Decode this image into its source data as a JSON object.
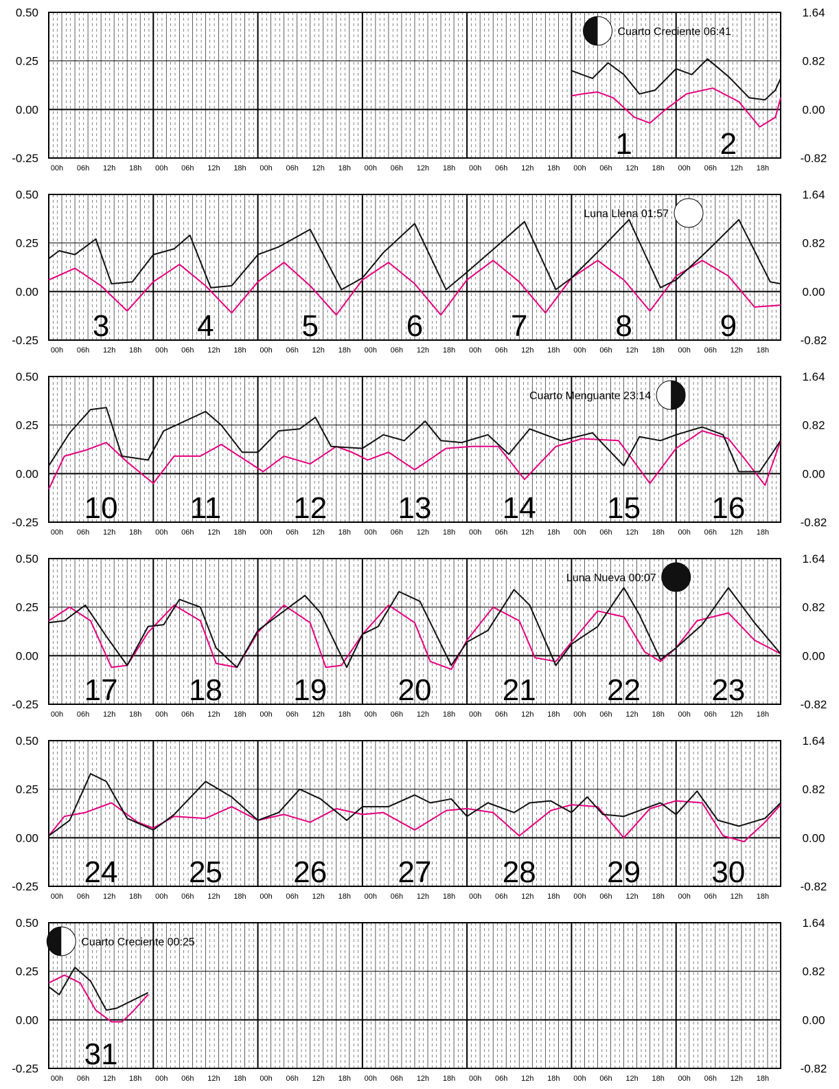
{
  "chart_data": {
    "type": "line",
    "left_axis_ticks": [
      "0.50",
      "0.25",
      "0.00",
      "-0.25"
    ],
    "right_axis_ticks": [
      "1.64",
      "0.82",
      "0.00",
      "-0.82"
    ],
    "ylim": [
      -0.25,
      0.5
    ],
    "time_tick_labels": [
      "00h",
      "06h",
      "12h",
      "18h"
    ],
    "days_per_panel": 7,
    "grid": true,
    "series_colors": {
      "black": "#111111",
      "magenta": "#e6007e"
    },
    "panels": [
      {
        "first_day_of_row": -5,
        "day_labels": [
          {
            "index": 5,
            "text": "1"
          },
          {
            "index": 6,
            "text": "2"
          }
        ],
        "moon": {
          "phase": "first-quarter",
          "label": "Cuarto Creciente 06:41",
          "side": "left",
          "day": 5.25
        },
        "black_t": [
          5,
          5.1,
          5.2,
          5.35,
          5.5,
          5.65,
          5.8,
          6.0,
          6.15,
          6.3,
          6.5,
          6.7,
          6.85,
          6.95,
          7.0
        ],
        "black_v": [
          0.2,
          0.18,
          0.16,
          0.24,
          0.18,
          0.08,
          0.1,
          0.21,
          0.18,
          0.26,
          0.17,
          0.06,
          0.05,
          0.1,
          0.16
        ],
        "magenta_t": [
          5,
          5.1,
          5.25,
          5.4,
          5.6,
          5.75,
          5.9,
          6.1,
          6.35,
          6.6,
          6.8,
          6.95,
          7.0
        ],
        "magenta_v": [
          0.07,
          0.08,
          0.09,
          0.06,
          -0.04,
          -0.07,
          0.0,
          0.08,
          0.11,
          0.04,
          -0.09,
          -0.04,
          0.06
        ]
      },
      {
        "first_day_of_row": 3,
        "day_labels": [
          {
            "index": 0,
            "text": "3"
          },
          {
            "index": 1,
            "text": "4"
          },
          {
            "index": 2,
            "text": "5"
          },
          {
            "index": 3,
            "text": "6"
          },
          {
            "index": 4,
            "text": "7"
          },
          {
            "index": 5,
            "text": "8"
          },
          {
            "index": 6,
            "text": "9"
          }
        ],
        "moon": {
          "phase": "full",
          "label": "Luna Llena 01:57",
          "side": "right",
          "day": 6.12
        },
        "black_t": [
          0,
          0.1,
          0.25,
          0.45,
          0.6,
          0.8,
          1.0,
          1.2,
          1.35,
          1.55,
          1.75,
          2.0,
          2.2,
          2.5,
          2.8,
          3.0,
          3.2,
          3.5,
          3.8,
          4.0,
          4.3,
          4.55,
          4.85,
          5.0,
          5.3,
          5.55,
          5.85,
          6.0,
          6.3,
          6.6,
          6.9,
          7.0
        ],
        "black_v": [
          0.17,
          0.21,
          0.19,
          0.27,
          0.04,
          0.05,
          0.19,
          0.22,
          0.29,
          0.02,
          0.03,
          0.19,
          0.23,
          0.32,
          0.01,
          0.07,
          0.2,
          0.35,
          0.01,
          0.1,
          0.24,
          0.36,
          0.01,
          0.07,
          0.23,
          0.37,
          0.02,
          0.06,
          0.21,
          0.37,
          0.05,
          0.04
        ],
        "magenta_t": [
          0,
          0.25,
          0.5,
          0.75,
          1.0,
          1.25,
          1.5,
          1.75,
          2.0,
          2.25,
          2.5,
          2.75,
          3.0,
          3.25,
          3.5,
          3.75,
          4.0,
          4.25,
          4.5,
          4.75,
          5.0,
          5.25,
          5.5,
          5.75,
          6.0,
          6.25,
          6.5,
          6.75,
          7.0
        ],
        "magenta_v": [
          0.06,
          0.12,
          0.03,
          -0.1,
          0.05,
          0.14,
          0.03,
          -0.11,
          0.05,
          0.15,
          0.03,
          -0.12,
          0.06,
          0.15,
          0.04,
          -0.12,
          0.06,
          0.16,
          0.05,
          -0.11,
          0.07,
          0.16,
          0.06,
          -0.1,
          0.08,
          0.16,
          0.08,
          -0.08,
          -0.07
        ]
      },
      {
        "first_day_of_row": 10,
        "day_labels": [
          {
            "index": 0,
            "text": "10"
          },
          {
            "index": 1,
            "text": "11"
          },
          {
            "index": 2,
            "text": "12"
          },
          {
            "index": 3,
            "text": "13"
          },
          {
            "index": 4,
            "text": "14"
          },
          {
            "index": 5,
            "text": "15"
          },
          {
            "index": 6,
            "text": "16"
          }
        ],
        "moon": {
          "phase": "last-quarter",
          "label": "Cuarto Menguante 23:14",
          "side": "right",
          "day": 5.95
        },
        "black_t": [
          0,
          0.2,
          0.4,
          0.55,
          0.7,
          0.95,
          1.1,
          1.3,
          1.5,
          1.65,
          1.85,
          2.0,
          2.2,
          2.4,
          2.55,
          2.7,
          3.0,
          3.2,
          3.4,
          3.6,
          3.75,
          3.95,
          4.2,
          4.4,
          4.6,
          4.9,
          5.2,
          5.5,
          5.65,
          5.85,
          6.0,
          6.25,
          6.45,
          6.6,
          6.8,
          7.0
        ],
        "black_v": [
          0.04,
          0.21,
          0.33,
          0.34,
          0.09,
          0.07,
          0.22,
          0.27,
          0.32,
          0.25,
          0.11,
          0.11,
          0.22,
          0.23,
          0.29,
          0.14,
          0.13,
          0.2,
          0.17,
          0.27,
          0.17,
          0.16,
          0.2,
          0.1,
          0.23,
          0.17,
          0.21,
          0.04,
          0.19,
          0.17,
          0.2,
          0.24,
          0.2,
          0.01,
          0.01,
          0.17
        ],
        "magenta_t": [
          0,
          0.15,
          0.35,
          0.55,
          0.75,
          1.0,
          1.2,
          1.45,
          1.65,
          1.85,
          2.05,
          2.25,
          2.5,
          2.75,
          2.9,
          3.05,
          3.25,
          3.5,
          3.8,
          4.05,
          4.3,
          4.55,
          4.85,
          5.1,
          5.45,
          5.75,
          6.0,
          6.25,
          6.5,
          6.65,
          6.85,
          7.0
        ],
        "magenta_v": [
          -0.08,
          0.09,
          0.12,
          0.16,
          0.06,
          -0.05,
          0.09,
          0.09,
          0.15,
          0.08,
          0.01,
          0.09,
          0.05,
          0.14,
          0.11,
          0.07,
          0.11,
          0.02,
          0.13,
          0.14,
          0.14,
          -0.03,
          0.14,
          0.18,
          0.17,
          -0.05,
          0.13,
          0.22,
          0.18,
          0.08,
          -0.06,
          0.17
        ]
      },
      {
        "first_day_of_row": 17,
        "day_labels": [
          {
            "index": 0,
            "text": "17"
          },
          {
            "index": 1,
            "text": "18"
          },
          {
            "index": 2,
            "text": "19"
          },
          {
            "index": 3,
            "text": "20"
          },
          {
            "index": 4,
            "text": "21"
          },
          {
            "index": 5,
            "text": "22"
          },
          {
            "index": 6,
            "text": "23"
          }
        ],
        "moon": {
          "phase": "new",
          "label": "Luna Nueva 00:07",
          "side": "right",
          "day": 6.0
        },
        "black_t": [
          0,
          0.15,
          0.35,
          0.55,
          0.75,
          0.95,
          1.1,
          1.25,
          1.45,
          1.6,
          1.8,
          2.0,
          2.15,
          2.45,
          2.6,
          2.85,
          3.0,
          3.15,
          3.35,
          3.55,
          3.85,
          4.0,
          4.2,
          4.45,
          4.6,
          4.85,
          5.0,
          5.25,
          5.5,
          5.65,
          5.85,
          6.0,
          6.25,
          6.5,
          6.75,
          7.0
        ],
        "black_v": [
          0.17,
          0.18,
          0.26,
          0.1,
          -0.05,
          0.15,
          0.16,
          0.29,
          0.25,
          0.04,
          -0.06,
          0.13,
          0.19,
          0.31,
          0.22,
          -0.06,
          0.11,
          0.15,
          0.33,
          0.28,
          -0.05,
          0.07,
          0.13,
          0.34,
          0.26,
          -0.05,
          0.06,
          0.15,
          0.35,
          0.21,
          -0.02,
          0.04,
          0.16,
          0.35,
          0.17,
          0.01
        ],
        "magenta_t": [
          0,
          0.2,
          0.4,
          0.6,
          0.75,
          0.95,
          1.2,
          1.45,
          1.6,
          1.8,
          2.0,
          2.25,
          2.5,
          2.65,
          2.8,
          3.0,
          3.25,
          3.5,
          3.65,
          3.85,
          4.0,
          4.25,
          4.5,
          4.65,
          4.85,
          5.0,
          5.25,
          5.5,
          5.7,
          5.85,
          6.0,
          6.2,
          6.5,
          6.75,
          7.0
        ],
        "magenta_v": [
          0.18,
          0.25,
          0.18,
          -0.06,
          -0.05,
          0.12,
          0.26,
          0.18,
          -0.04,
          -0.06,
          0.12,
          0.26,
          0.17,
          -0.06,
          -0.05,
          0.11,
          0.26,
          0.17,
          -0.03,
          -0.07,
          0.08,
          0.25,
          0.18,
          -0.01,
          -0.03,
          0.07,
          0.23,
          0.2,
          0.02,
          -0.03,
          0.04,
          0.18,
          0.22,
          0.08,
          0.01
        ]
      },
      {
        "first_day_of_row": 24,
        "day_labels": [
          {
            "index": 0,
            "text": "24"
          },
          {
            "index": 1,
            "text": "25"
          },
          {
            "index": 2,
            "text": "26"
          },
          {
            "index": 3,
            "text": "27"
          },
          {
            "index": 4,
            "text": "28"
          },
          {
            "index": 5,
            "text": "29"
          },
          {
            "index": 6,
            "text": "30"
          }
        ],
        "moon": null,
        "black_t": [
          0,
          0.2,
          0.4,
          0.55,
          0.75,
          1.0,
          1.2,
          1.5,
          1.75,
          2.0,
          2.2,
          2.4,
          2.6,
          2.85,
          3.0,
          3.25,
          3.5,
          3.65,
          3.85,
          4.0,
          4.2,
          4.45,
          4.6,
          4.8,
          5.0,
          5.15,
          5.3,
          5.5,
          5.75,
          5.85,
          6.0,
          6.2,
          6.4,
          6.6,
          6.85,
          7.0
        ],
        "black_v": [
          0.01,
          0.09,
          0.33,
          0.29,
          0.1,
          0.04,
          0.12,
          0.29,
          0.21,
          0.09,
          0.13,
          0.25,
          0.2,
          0.09,
          0.16,
          0.16,
          0.22,
          0.18,
          0.2,
          0.11,
          0.18,
          0.13,
          0.18,
          0.19,
          0.13,
          0.21,
          0.12,
          0.11,
          0.16,
          0.18,
          0.12,
          0.24,
          0.09,
          0.06,
          0.1,
          0.18
        ],
        "magenta_t": [
          0,
          0.15,
          0.35,
          0.6,
          0.85,
          1.0,
          1.2,
          1.5,
          1.75,
          2.0,
          2.25,
          2.5,
          2.75,
          3.0,
          3.2,
          3.5,
          3.8,
          4.0,
          4.25,
          4.5,
          4.8,
          5.0,
          5.25,
          5.5,
          5.75,
          6.0,
          6.25,
          6.45,
          6.65,
          6.85,
          7.0
        ],
        "magenta_v": [
          0.01,
          0.11,
          0.13,
          0.18,
          0.08,
          0.05,
          0.11,
          0.1,
          0.16,
          0.09,
          0.12,
          0.08,
          0.15,
          0.12,
          0.13,
          0.04,
          0.14,
          0.15,
          0.13,
          0.01,
          0.14,
          0.17,
          0.16,
          0.0,
          0.15,
          0.19,
          0.18,
          0.01,
          -0.02,
          0.08,
          0.17
        ]
      },
      {
        "first_day_of_row": 31,
        "day_labels": [
          {
            "index": 0,
            "text": "31"
          }
        ],
        "moon": {
          "phase": "first-quarter",
          "label": "Cuarto Creciente 00:25",
          "side": "left",
          "day": 0.12
        },
        "black_t": [
          0,
          0.1,
          0.25,
          0.4,
          0.55,
          0.65,
          0.8,
          0.95
        ],
        "black_v": [
          0.17,
          0.13,
          0.27,
          0.2,
          0.05,
          0.06,
          0.1,
          0.14
        ],
        "magenta_t": [
          0,
          0.15,
          0.3,
          0.45,
          0.6,
          0.7,
          0.8,
          0.95
        ],
        "magenta_v": [
          0.19,
          0.23,
          0.19,
          0.05,
          -0.01,
          -0.01,
          0.04,
          0.13
        ]
      }
    ]
  }
}
